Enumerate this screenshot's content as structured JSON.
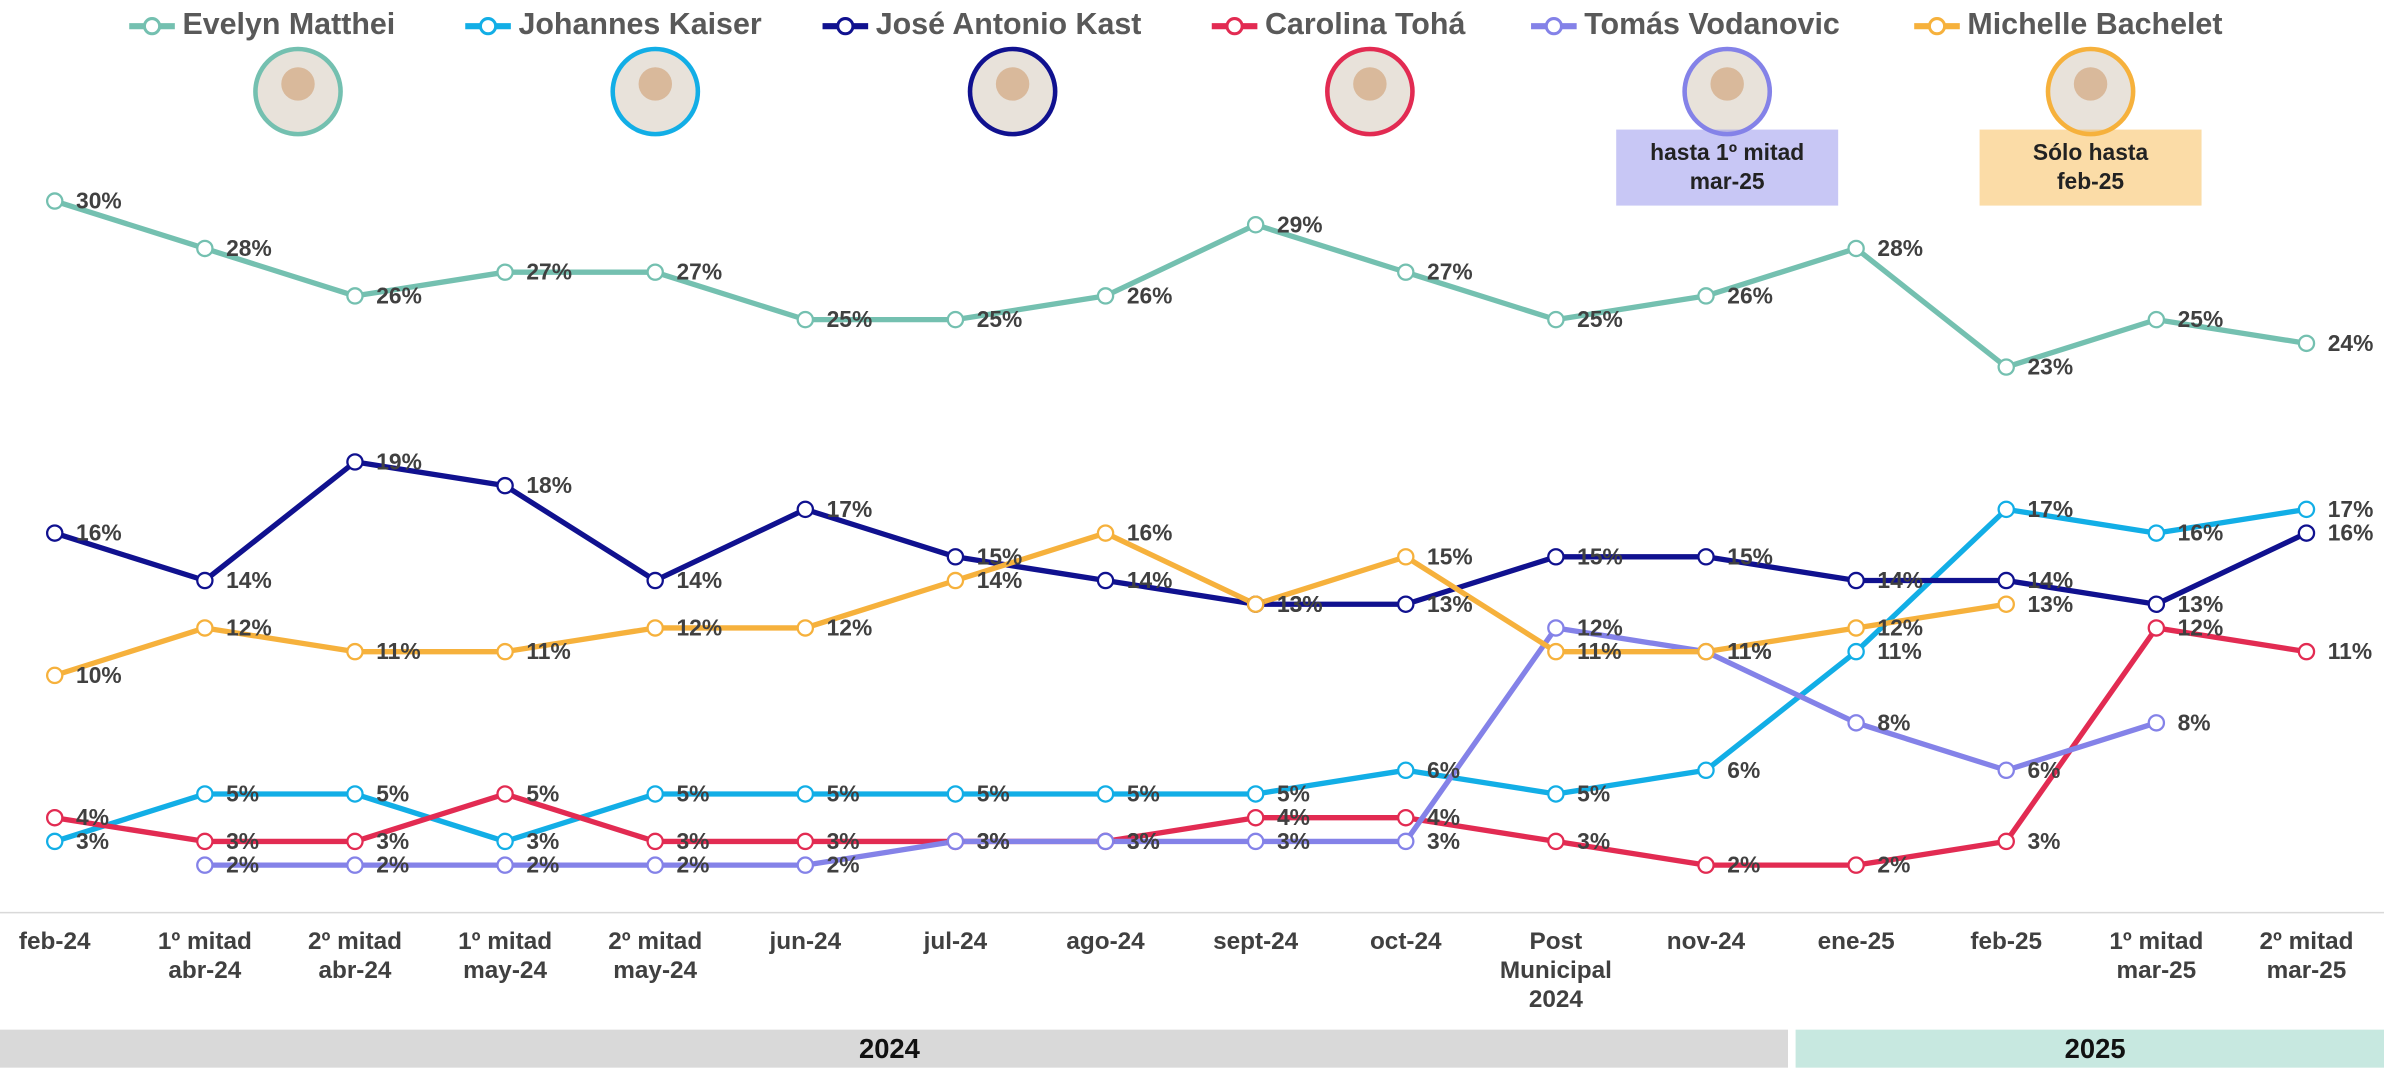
{
  "chart_data": {
    "type": "line",
    "categories": [
      "feb-24",
      "1º mitad\nabr-24",
      "2º mitad\nabr-24",
      "1º mitad\nmay-24",
      "2º mitad\nmay-24",
      "jun-24",
      "jul-24",
      "ago-24",
      "sept-24",
      "oct-24",
      "Post\nMunicipal\n2024",
      "nov-24",
      "ene-25",
      "feb-25",
      "1º mitad\nmar-25",
      "2º mitad\nmar-25"
    ],
    "series": [
      {
        "name": "Evelyn Matthei",
        "color": "#74c0b0",
        "values": [
          30,
          28,
          26,
          27,
          27,
          25,
          25,
          26,
          29,
          27,
          25,
          26,
          28,
          23,
          25,
          24
        ],
        "value_labels": [
          "30%",
          "28%",
          "26%",
          "27%",
          "27%",
          "25%",
          "25%",
          "26%",
          "29%",
          "27%",
          "25%",
          "26%",
          "28%",
          "23%",
          "25%",
          "24%"
        ]
      },
      {
        "name": "Johannes Kaiser",
        "color": "#12aee6",
        "values": [
          3,
          5,
          5,
          3,
          5,
          5,
          5,
          5,
          5,
          6,
          5,
          6,
          11,
          17,
          16,
          17
        ],
        "value_labels": [
          "3%",
          "5%",
          "5%",
          "3%",
          "5%",
          "5%",
          "5%",
          "5%",
          "5%",
          "6%",
          "5%",
          "6%",
          "11%",
          "17%",
          "16%",
          "17%"
        ]
      },
      {
        "name": "José Antonio Kast",
        "color": "#10118f",
        "values": [
          16,
          14,
          19,
          18,
          14,
          17,
          15,
          14,
          13,
          13,
          15,
          15,
          14,
          14,
          13,
          16
        ],
        "value_labels": [
          "16%",
          "14%",
          "19%",
          "18%",
          "14%",
          "17%",
          "15%",
          "14%",
          "13%",
          "13%",
          "15%",
          "15%",
          "14%",
          "14%",
          "13%",
          "16%"
        ]
      },
      {
        "name": "Carolina Tohá",
        "color": "#e22b52",
        "values": [
          4,
          3,
          3,
          5,
          3,
          3,
          3,
          3,
          4,
          4,
          3,
          2,
          2,
          3,
          12,
          11
        ],
        "value_labels": [
          "4%",
          "3%",
          "3%",
          "5%",
          "3%",
          "3%",
          "3%",
          "3%",
          "4%",
          "4%",
          "3%",
          "2%",
          "2%",
          "3%",
          "12%",
          "11%"
        ]
      },
      {
        "name": "Tomás Vodanovic",
        "color": "#8482e8",
        "note": "hasta 1º mitad\nmar-25",
        "values": [
          null,
          2,
          2,
          2,
          2,
          2,
          3,
          3,
          3,
          3,
          12,
          11,
          8,
          6,
          8,
          null
        ],
        "value_labels": [
          null,
          "2%",
          "2%",
          "2%",
          "2%",
          "2%",
          "3%",
          "3%",
          "3%",
          "3%",
          "12%",
          "11%",
          "8%",
          "6%",
          "8%",
          null
        ]
      },
      {
        "name": "Michelle Bachelet",
        "color": "#f6b13c",
        "note": "Sólo hasta\nfeb-25",
        "values": [
          10,
          12,
          11,
          11,
          12,
          12,
          14,
          16,
          13,
          15,
          11,
          11,
          12,
          13,
          null,
          null
        ],
        "value_labels": [
          "10%",
          "12%",
          "11%",
          "11%",
          "12%",
          "12%",
          "14%",
          "16%",
          "13%",
          "15%",
          "11%",
          "11%",
          "12%",
          "13%",
          null,
          null
        ]
      }
    ],
    "years": [
      "2024",
      "2025"
    ]
  }
}
